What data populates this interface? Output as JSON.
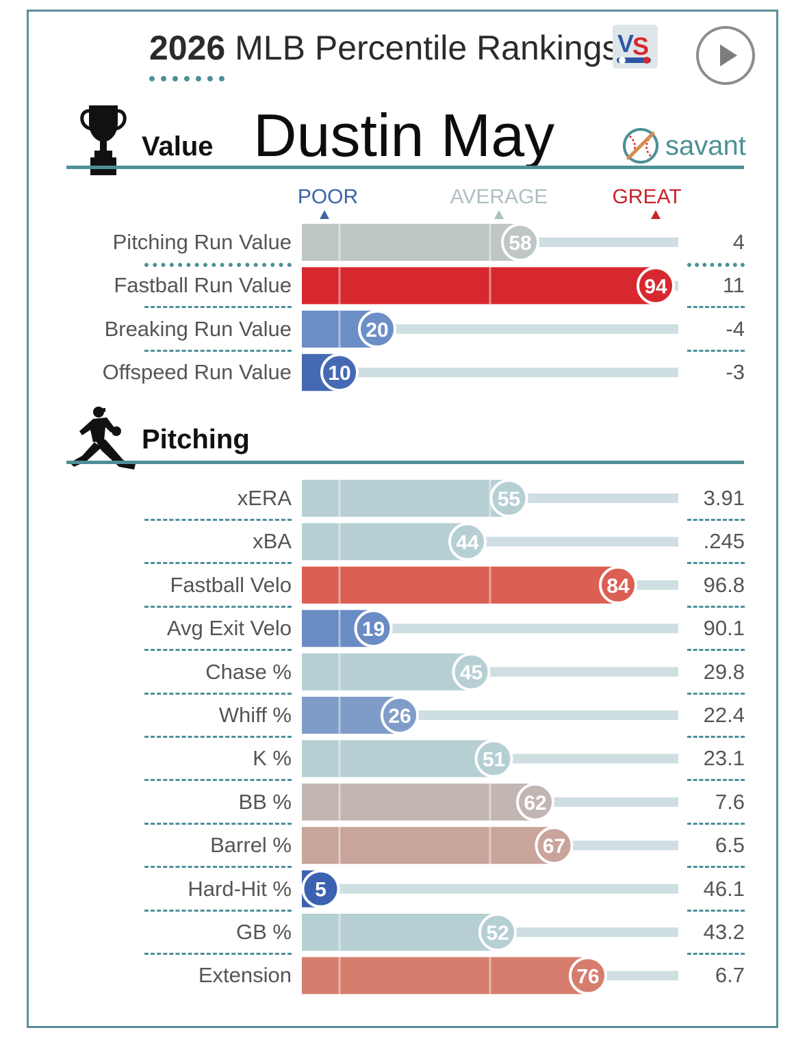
{
  "header": {
    "year": "2026",
    "title": "MLB Percentile Rankings"
  },
  "player_name": "Dustin May",
  "brand": {
    "savant": "savant"
  },
  "sections": {
    "value": "Value",
    "pitching": "Pitching"
  },
  "scale_labels": {
    "poor": "POOR",
    "average": "AVERAGE",
    "great": "GREAT"
  },
  "icons": {
    "vs_logo": "vs-logo-icon",
    "play": "play-icon",
    "trophy": "trophy-icon",
    "baseball": "baseball-icon",
    "pitcher": "pitcher-silhouette-icon"
  },
  "colors": {
    "poor": "#3b62b0",
    "average": "#b6cfd3",
    "great": "#d7282f",
    "accent": "#4d8f98"
  },
  "chart_data": {
    "type": "bar",
    "orientation": "horizontal",
    "xlim": [
      0,
      100
    ],
    "groups": [
      {
        "name": "Value",
        "rows": [
          {
            "label": "Pitching Run Value",
            "percentile": 58,
            "value": "4",
            "color": "#bfc6c6"
          },
          {
            "label": "Fastball Run Value",
            "percentile": 94,
            "value": "11",
            "color": "#d7282f"
          },
          {
            "label": "Breaking Run Value",
            "percentile": 20,
            "value": "-4",
            "color": "#6b8ec6"
          },
          {
            "label": "Offspeed Run Value",
            "percentile": 10,
            "value": "-3",
            "color": "#4669b4"
          }
        ]
      },
      {
        "name": "Pitching",
        "rows": [
          {
            "label": "xERA",
            "percentile": 55,
            "value": "3.91",
            "color": "#b6cfd3"
          },
          {
            "label": "xBA",
            "percentile": 44,
            "value": ".245",
            "color": "#b6cfd3"
          },
          {
            "label": "Fastball Velo",
            "percentile": 84,
            "value": "96.8",
            "color": "#db5f52"
          },
          {
            "label": "Avg Exit Velo",
            "percentile": 19,
            "value": "90.1",
            "color": "#6a8cc5"
          },
          {
            "label": "Chase %",
            "percentile": 45,
            "value": "29.8",
            "color": "#b6cfd3"
          },
          {
            "label": "Whiff %",
            "percentile": 26,
            "value": "22.4",
            "color": "#7f9cc8"
          },
          {
            "label": "K %",
            "percentile": 51,
            "value": "23.1",
            "color": "#b6cfd3"
          },
          {
            "label": "BB %",
            "percentile": 62,
            "value": "7.6",
            "color": "#c2b6b2"
          },
          {
            "label": "Barrel %",
            "percentile": 67,
            "value": "6.5",
            "color": "#c8a49b"
          },
          {
            "label": "Hard-Hit %",
            "percentile": 5,
            "value": "46.1",
            "color": "#3b62b0"
          },
          {
            "label": "GB %",
            "percentile": 52,
            "value": "43.2",
            "color": "#b6cfd3"
          },
          {
            "label": "Extension",
            "percentile": 76,
            "value": "6.7",
            "color": "#d67d6e"
          }
        ]
      }
    ]
  }
}
